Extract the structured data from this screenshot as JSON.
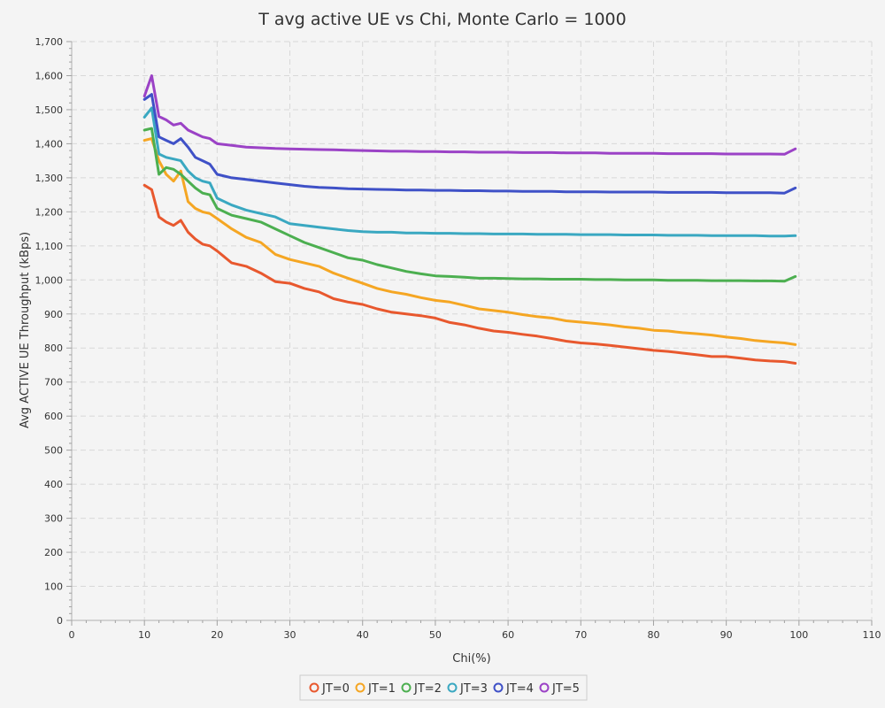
{
  "chart_data": {
    "type": "line",
    "title": "T avg active UE vs Chi, Monte Carlo = 1000",
    "xlabel": "Chi(%)",
    "ylabel": "Avg ACTIVE UE Throughput (kBps)",
    "xlim": [
      0,
      110
    ],
    "ylim": [
      0,
      1700
    ],
    "x_ticks": [
      0,
      10,
      20,
      30,
      40,
      50,
      60,
      70,
      80,
      90,
      100,
      110
    ],
    "x_tick_labels": [
      "0",
      "10",
      "20",
      "30",
      "40",
      "50",
      "60",
      "70",
      "80",
      "90",
      "100",
      "110"
    ],
    "y_ticks": [
      0,
      100,
      200,
      300,
      400,
      500,
      600,
      700,
      800,
      900,
      1000,
      1100,
      1200,
      1300,
      1400,
      1500,
      1600,
      1700
    ],
    "y_tick_labels": [
      "0",
      "100",
      "200",
      "300",
      "400",
      "500",
      "600",
      "700",
      "800",
      "900",
      "1,000",
      "1,100",
      "1,200",
      "1,300",
      "1,400",
      "1,500",
      "1,600",
      "1,700"
    ],
    "grid": true,
    "legend_position": "bottom",
    "x": [
      10,
      11,
      12,
      13,
      14,
      15,
      16,
      17,
      18,
      19,
      20,
      22,
      24,
      26,
      28,
      30,
      32,
      34,
      36,
      38,
      40,
      42,
      44,
      46,
      48,
      50,
      52,
      54,
      56,
      58,
      60,
      62,
      64,
      66,
      68,
      70,
      72,
      74,
      76,
      78,
      80,
      82,
      84,
      86,
      88,
      90,
      92,
      94,
      96,
      98,
      99.5
    ],
    "series": [
      {
        "name": "JT=0",
        "color": "#e8582e",
        "values": [
          1278,
          1265,
          1185,
          1170,
          1160,
          1175,
          1140,
          1120,
          1105,
          1100,
          1085,
          1050,
          1040,
          1020,
          995,
          990,
          975,
          965,
          945,
          935,
          928,
          915,
          905,
          900,
          895,
          888,
          875,
          868,
          858,
          850,
          846,
          840,
          835,
          828,
          820,
          815,
          812,
          808,
          803,
          798,
          793,
          790,
          785,
          780,
          775,
          775,
          770,
          765,
          762,
          760,
          755
        ]
      },
      {
        "name": "JT=1",
        "color": "#f5a623",
        "values": [
          1410,
          1415,
          1350,
          1310,
          1290,
          1320,
          1230,
          1210,
          1200,
          1195,
          1180,
          1150,
          1125,
          1110,
          1075,
          1060,
          1050,
          1040,
          1020,
          1005,
          990,
          975,
          965,
          958,
          948,
          940,
          935,
          925,
          915,
          910,
          905,
          898,
          892,
          888,
          880,
          876,
          872,
          868,
          862,
          858,
          852,
          850,
          845,
          842,
          838,
          832,
          828,
          822,
          818,
          815,
          810
        ]
      },
      {
        "name": "JT=2",
        "color": "#4caf50",
        "values": [
          1440,
          1445,
          1310,
          1330,
          1325,
          1310,
          1290,
          1270,
          1255,
          1250,
          1210,
          1190,
          1180,
          1170,
          1150,
          1130,
          1110,
          1095,
          1080,
          1065,
          1058,
          1045,
          1035,
          1025,
          1018,
          1012,
          1010,
          1008,
          1005,
          1005,
          1004,
          1003,
          1003,
          1002,
          1002,
          1002,
          1001,
          1001,
          1000,
          1000,
          1000,
          999,
          999,
          999,
          998,
          998,
          998,
          997,
          997,
          996,
          1010
        ]
      },
      {
        "name": "JT=3",
        "color": "#3aa8c1",
        "values": [
          1478,
          1505,
          1370,
          1360,
          1355,
          1350,
          1320,
          1300,
          1290,
          1285,
          1240,
          1220,
          1205,
          1195,
          1185,
          1165,
          1160,
          1155,
          1150,
          1145,
          1142,
          1140,
          1140,
          1138,
          1138,
          1137,
          1137,
          1136,
          1136,
          1135,
          1135,
          1135,
          1134,
          1134,
          1134,
          1133,
          1133,
          1133,
          1132,
          1132,
          1132,
          1131,
          1131,
          1131,
          1130,
          1130,
          1130,
          1130,
          1129,
          1129,
          1130
        ]
      },
      {
        "name": "JT=4",
        "color": "#3f51c7",
        "values": [
          1530,
          1545,
          1420,
          1410,
          1400,
          1415,
          1390,
          1360,
          1350,
          1340,
          1310,
          1300,
          1295,
          1290,
          1285,
          1280,
          1275,
          1272,
          1270,
          1268,
          1267,
          1266,
          1265,
          1264,
          1264,
          1263,
          1263,
          1262,
          1262,
          1261,
          1261,
          1260,
          1260,
          1260,
          1259,
          1259,
          1259,
          1258,
          1258,
          1258,
          1258,
          1257,
          1257,
          1257,
          1257,
          1256,
          1256,
          1256,
          1256,
          1255,
          1270
        ]
      },
      {
        "name": "JT=5",
        "color": "#9b42c6",
        "values": [
          1540,
          1600,
          1480,
          1470,
          1455,
          1460,
          1440,
          1430,
          1420,
          1415,
          1400,
          1395,
          1390,
          1388,
          1386,
          1385,
          1384,
          1383,
          1382,
          1381,
          1380,
          1379,
          1378,
          1378,
          1377,
          1377,
          1376,
          1376,
          1375,
          1375,
          1375,
          1374,
          1374,
          1374,
          1373,
          1373,
          1373,
          1372,
          1372,
          1372,
          1372,
          1371,
          1371,
          1371,
          1371,
          1370,
          1370,
          1370,
          1370,
          1369,
          1385
        ]
      }
    ]
  }
}
